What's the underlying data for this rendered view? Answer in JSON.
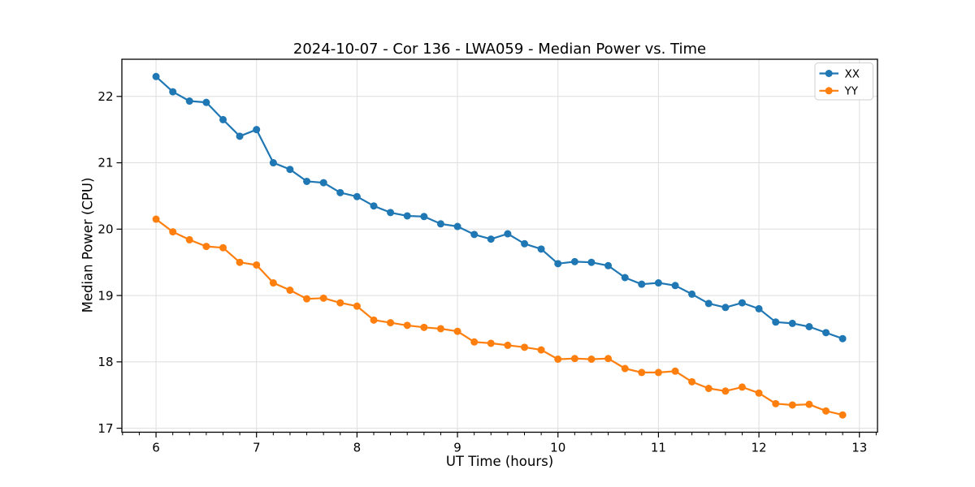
{
  "chart_data": {
    "type": "line",
    "title": "2024-10-07 - Cor 136 - LWA059 - Median Power vs. Time",
    "xlabel": "UT Time (hours)",
    "ylabel": "Median Power (CPU)",
    "xlim": [
      5.66,
      13.18
    ],
    "ylim": [
      16.94,
      22.56
    ],
    "x_ticks": [
      6,
      7,
      8,
      9,
      10,
      11,
      12,
      13
    ],
    "y_ticks": [
      17,
      18,
      19,
      20,
      21,
      22
    ],
    "x_minor_tick_step": 0.1666667,
    "grid": true,
    "legend": {
      "position": "upper right",
      "entries": [
        "XX",
        "YY"
      ]
    },
    "x": [
      6.0,
      6.167,
      6.333,
      6.5,
      6.667,
      6.833,
      7.0,
      7.167,
      7.333,
      7.5,
      7.667,
      7.833,
      8.0,
      8.167,
      8.333,
      8.5,
      8.667,
      8.833,
      9.0,
      9.167,
      9.333,
      9.5,
      9.667,
      9.833,
      10.0,
      10.167,
      10.333,
      10.5,
      10.667,
      10.833,
      11.0,
      11.167,
      11.333,
      11.5,
      11.667,
      11.833,
      12.0,
      12.167,
      12.333,
      12.5,
      12.667,
      12.833
    ],
    "series": [
      {
        "name": "XX",
        "color": "#1f77b4",
        "marker": "circle",
        "values": [
          22.3,
          22.07,
          21.93,
          21.91,
          21.65,
          21.4,
          21.5,
          21.0,
          20.9,
          20.72,
          20.7,
          20.55,
          20.49,
          20.35,
          20.25,
          20.2,
          20.19,
          20.08,
          20.04,
          19.92,
          19.85,
          19.93,
          19.78,
          19.7,
          19.48,
          19.51,
          19.5,
          19.45,
          19.27,
          19.17,
          19.19,
          19.15,
          19.02,
          18.88,
          18.82,
          18.89,
          18.8,
          18.6,
          18.58,
          18.53,
          18.44,
          18.35
        ]
      },
      {
        "name": "YY",
        "color": "#ff7f0e",
        "marker": "circle",
        "values": [
          20.15,
          19.96,
          19.84,
          19.74,
          19.72,
          19.5,
          19.46,
          19.19,
          19.08,
          18.95,
          18.96,
          18.89,
          18.84,
          18.63,
          18.59,
          18.55,
          18.52,
          18.5,
          18.46,
          18.3,
          18.28,
          18.25,
          18.22,
          18.18,
          18.04,
          18.05,
          18.04,
          18.05,
          17.9,
          17.84,
          17.84,
          17.86,
          17.7,
          17.6,
          17.56,
          17.62,
          17.53,
          17.37,
          17.35,
          17.36,
          17.26,
          17.2
        ]
      }
    ]
  }
}
